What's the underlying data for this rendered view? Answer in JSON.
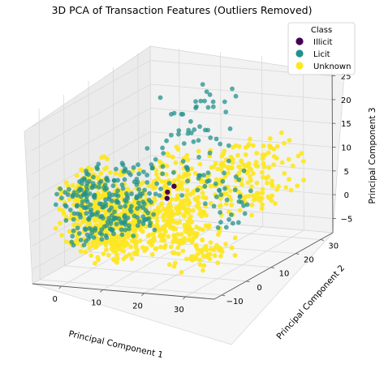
{
  "chart_data": {
    "type": "scatter3d",
    "title": "3D PCA of Transaction Features (Outliers Removed)",
    "xlabel": "Principal Component 1",
    "ylabel": "Principal Component 2",
    "zlabel": "Principal Component 3",
    "xlim": [
      -7,
      37
    ],
    "ylim": [
      -13,
      35
    ],
    "zlim": [
      -8,
      28
    ],
    "xticks": [
      "0",
      "10",
      "20",
      "30"
    ],
    "yticks": [
      "−10",
      "0",
      "10",
      "20",
      "30"
    ],
    "zticks": [
      "−5",
      "0",
      "5",
      "10",
      "15",
      "20",
      "25"
    ],
    "legend": {
      "title": "Class",
      "position": "top-right",
      "entries": [
        {
          "label": "Illicit",
          "color": "#440154"
        },
        {
          "label": "Licit",
          "color": "#21918c"
        },
        {
          "label": "Unknown",
          "color": "#fde725"
        }
      ]
    },
    "series": [
      {
        "name": "Unknown",
        "color": "#fde725",
        "clusters": [
          {
            "x": [
              -5,
              3
            ],
            "y": [
              -8,
              12
            ],
            "z": [
              -3,
              12
            ],
            "n": 250
          },
          {
            "x": [
              3,
              12
            ],
            "y": [
              -10,
              10
            ],
            "z": [
              -4,
              8
            ],
            "n": 220
          },
          {
            "x": [
              10,
              22
            ],
            "y": [
              -8,
              12
            ],
            "z": [
              -3,
              8
            ],
            "n": 200
          },
          {
            "x": [
              5,
              25
            ],
            "y": [
              5,
              25
            ],
            "z": [
              0,
              12
            ],
            "n": 160
          },
          {
            "x": [
              20,
              34
            ],
            "y": [
              10,
              30
            ],
            "z": [
              2,
              14
            ],
            "n": 120
          },
          {
            "x": [
              25,
              34
            ],
            "y": [
              -12,
              2
            ],
            "z": [
              -4,
              4
            ],
            "n": 70
          }
        ]
      },
      {
        "name": "Licit",
        "color": "#21918c",
        "clusters": [
          {
            "x": [
              -5,
              3
            ],
            "y": [
              -8,
              10
            ],
            "z": [
              -2,
              12
            ],
            "n": 140
          },
          {
            "x": [
              3,
              12
            ],
            "y": [
              -5,
              10
            ],
            "z": [
              -1,
              12
            ],
            "n": 100
          },
          {
            "x": [
              8,
              22
            ],
            "y": [
              5,
              25
            ],
            "z": [
              5,
              25
            ],
            "n": 70
          },
          {
            "x": [
              20,
              30
            ],
            "y": [
              0,
              20
            ],
            "z": [
              0,
              10
            ],
            "n": 30
          }
        ]
      },
      {
        "name": "Illicit",
        "color": "#440154",
        "points": [
          {
            "x": 12,
            "y": 10,
            "z": 6
          },
          {
            "x": 13,
            "y": 11,
            "z": 7
          },
          {
            "x": 12.5,
            "y": 9,
            "z": 5
          }
        ]
      }
    ]
  }
}
